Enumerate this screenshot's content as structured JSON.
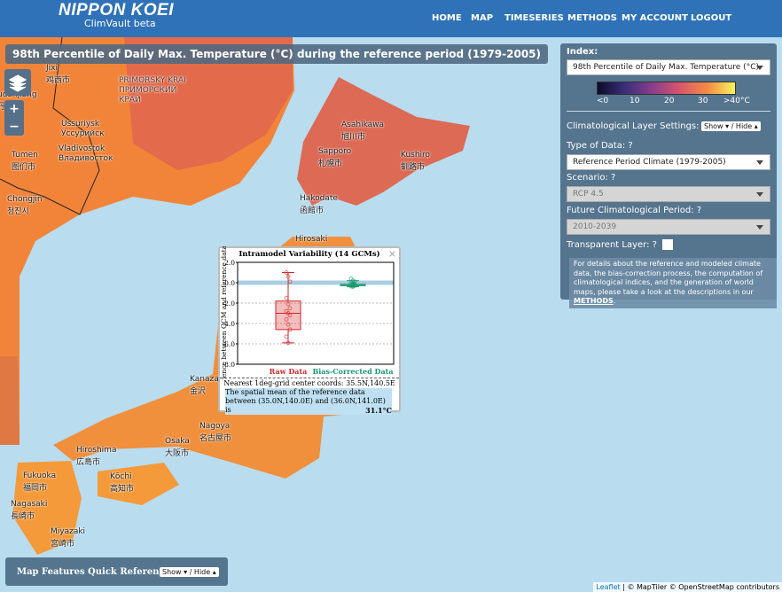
{
  "nav": {
    "brand": "NIPPON KOEI",
    "product": "ClimVault beta",
    "links": [
      "HOME",
      "MAP",
      "TIMESERIES",
      "METHODS",
      "MY ACCOUNT",
      "LOGOUT"
    ]
  },
  "map": {
    "title": "98th Percentile of Daily Max. Temperature (°C) during the reference period (1979-2005)",
    "zoom": [
      "+",
      "−"
    ],
    "labels": [
      [
        "Jixi",
        "鸡西市"
      ],
      [
        "udanjiang",
        "丹江市"
      ],
      [
        "PRIMORSKY KRAI",
        "ПРИМОРСКИЙ",
        "КРАЙ"
      ],
      [
        "Ussuriysk",
        "Уссурийск"
      ],
      [
        "Vladivostok",
        "Владивосток"
      ],
      [
        "Tumen",
        "图们市"
      ],
      [
        "Chongjin",
        "청진시"
      ],
      [
        "Asahikawa",
        "旭川市"
      ],
      [
        "Sapporo",
        "札幌市"
      ],
      [
        "Kushiro",
        "釧路市"
      ],
      [
        "Hakodate",
        "函館市"
      ],
      [
        "Hirosaki"
      ],
      [
        "Kanaza",
        "金沢"
      ],
      [
        "Nagoya",
        "名古屋市"
      ],
      [
        "Osaka",
        "大阪市"
      ],
      [
        "Hiroshima",
        "広島市"
      ],
      [
        "Kōchi",
        "高知市"
      ],
      [
        "Fukuoka",
        "福岡市"
      ],
      [
        "Nagasaki",
        "長崎市"
      ],
      [
        "Miyazaki",
        "宮崎市"
      ]
    ],
    "attribution": {
      "leaflet": "Leaflet",
      "rest": " | © MapTiler © OpenStreetMap contributors"
    }
  },
  "panel": {
    "index_label": "Index:",
    "index_value": "98th Percentile of Daily Max. Temperature (°C)",
    "colorbar": [
      "<0",
      "10",
      "20",
      "30",
      ">40°C"
    ],
    "layer_settings": "Climatological Layer Settings:",
    "toggle": "Show ▾ / Hide ▴",
    "type_label": "Type of Data:",
    "type_value": "Reference Period Climate (1979-2005)",
    "scenario_label": "Scenario:",
    "scenario_value": "RCP 4.5",
    "period_label": "Future Climatological Period:",
    "period_value": "2010-2039",
    "transparent_label": "Transparent Layer:",
    "help": "?",
    "info": "For details about the reference and modeled climate data, the bias-correction process, the computation of climatological indices, and the generation of world maps, please take a look at the descriptions in our ",
    "info_link": "METHODS",
    "info_end": "."
  },
  "popup": {
    "close": "×",
    "coords": "Nearest 1deg-grid center coords: 35.5N,140.5E",
    "mean_text": "The spatial mean of the reference data between (35.0N,140.0E) and (36.0N,141.0E) is",
    "mean_value": "31.1°C"
  },
  "quick_reference": {
    "title": "Map Features Quick Reference",
    "toggle": "Show ▾ / Hide ▴"
  },
  "chart_data": {
    "type": "box",
    "title": "Intramodel Variability (14 GCMs)",
    "y_label": "Difference between GCM and reference data [°C]",
    "ylim": [
      -8,
      2
    ],
    "yticks": [
      {
        "value": 2,
        "label": "2.0"
      },
      {
        "value": 0,
        "label": "0.0"
      },
      {
        "value": -2,
        "label": "-2.0"
      },
      {
        "value": -4,
        "label": "-4.0"
      },
      {
        "value": -6,
        "label": "-6.0"
      },
      {
        "value": -8,
        "label": "-8.0"
      }
    ],
    "reference_line": 0,
    "grid": true,
    "boxes": [
      {
        "name": "Raw Data",
        "color": "#d62728",
        "whisker_low": -5.9,
        "q1": -4.6,
        "median": -3.0,
        "q3": -1.8,
        "whisker_high": 1.0,
        "points": [
          1.0,
          0.6,
          0.1,
          -1.5,
          -2.1,
          -2.5,
          -2.8,
          -3.0,
          -3.2,
          -3.6,
          -4.1,
          -4.6,
          -5.3,
          -5.9
        ]
      },
      {
        "name": "Bias-Corrected Data",
        "color": "#1a9a6c",
        "whisker_low": -0.4,
        "q1": -0.3,
        "median": -0.2,
        "q3": -0.15,
        "whisker_high": 0.2,
        "points": [
          0.4,
          0.2,
          0.1,
          0.0,
          -0.1,
          -0.1,
          -0.15,
          -0.2,
          -0.2,
          -0.25,
          -0.3,
          -0.3,
          -0.35,
          -0.4
        ]
      }
    ]
  }
}
